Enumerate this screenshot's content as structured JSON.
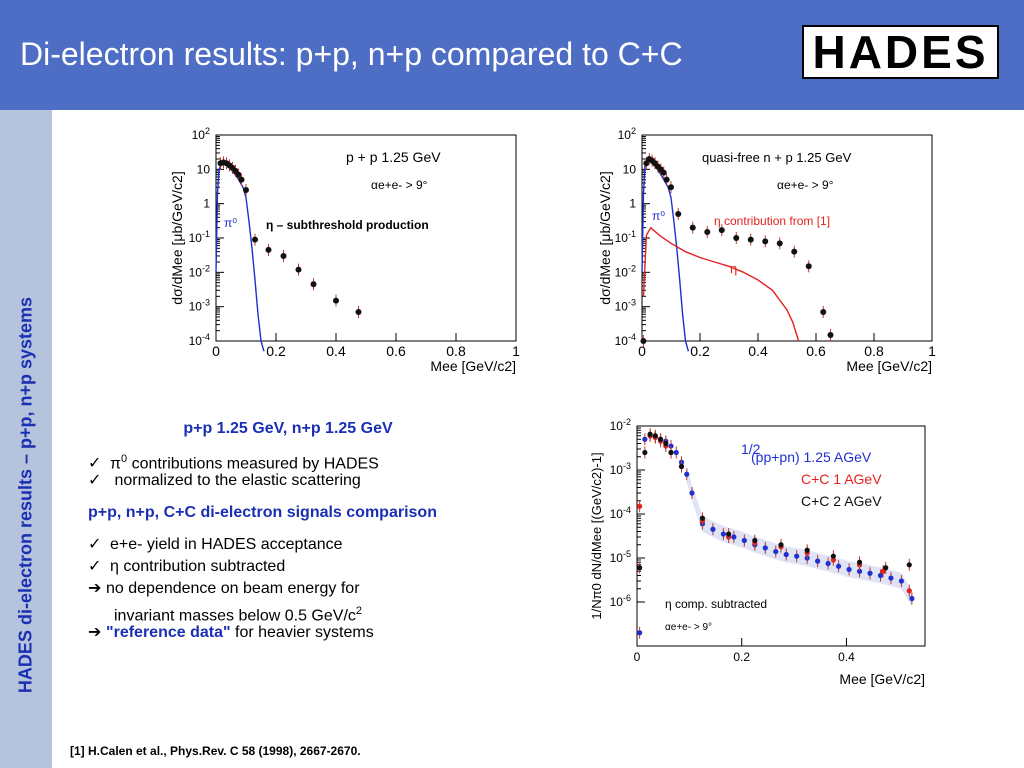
{
  "title": "Di-electron results: p+p, n+p compared to C+C",
  "logo_text": "HADES",
  "sidebar_text": "HADES di-electron results – p+p, n+p systems",
  "colors": {
    "header": "#4e6dc4",
    "sidebar": "#b6c3dc",
    "accent": "#1a2fb4",
    "pi0": "#1f2fd0",
    "eta": "#e3221f"
  },
  "text_block": {
    "heading1": "p+p 1.25 GeV, n+p 1.25 GeV",
    "check1_pre": "π",
    "check1_sup": "0",
    "check1_post": " contributions measured by HADES",
    "check2": " normalized to the elastic scattering",
    "heading2": "p+p, n+p, C+C di-electron signals comparison",
    "check3": "e+e- yield in HADES acceptance",
    "check4": "η contribution subtracted",
    "arrow1": "no dependence on beam energy for",
    "arrow1_cont_pre": "invariant masses below 0.5 GeV/c",
    "arrow1_cont_sup": "2",
    "arrow2_quote": "\"reference data\"",
    "arrow2_post": " for heavier systems"
  },
  "footnote": "[1] H.Calen et al., Phys.Rev. C 58 (1998), 2667-2670.",
  "chart_data": [
    {
      "type": "scatter",
      "xlim": [
        0,
        1
      ],
      "ylim_log10": [
        -4,
        2
      ],
      "xticks": [
        "0",
        "0.2",
        "0.4",
        "0.6",
        "0.8",
        "1"
      ],
      "yticks": [
        "10-4",
        "10-3",
        "10-2",
        "10-1",
        "1",
        "10",
        "102"
      ],
      "ylabel": "dσ/dMee [μb/GeV/c2]",
      "xlabel": "Mee [GeV/c2]",
      "legend_lines": [
        "p + p  1.25 GeV",
        "αe+e- > 9°"
      ],
      "annotation": "η – subthreshold production",
      "series": [
        {
          "name": "π⁰",
          "kind": "curve",
          "x": [
            0.0,
            0.005,
            0.01,
            0.02,
            0.03,
            0.05,
            0.07,
            0.09,
            0.1,
            0.11,
            0.12,
            0.13,
            0.14,
            0.15,
            0.16
          ],
          "y": [
            0.01,
            2,
            10,
            15,
            14,
            10,
            6,
            3,
            1.5,
            0.3,
            0.05,
            0.006,
            0.0006,
            0.0001,
            3e-05
          ]
        },
        {
          "kind": "points",
          "x": [
            0.015,
            0.025,
            0.035,
            0.045,
            0.055,
            0.065,
            0.075,
            0.085,
            0.1,
            0.13,
            0.175,
            0.225,
            0.275,
            0.325,
            0.4,
            0.475
          ],
          "y": [
            15,
            16,
            15,
            13,
            11,
            9,
            7,
            5,
            2.5,
            0.09,
            0.045,
            0.03,
            0.012,
            0.0045,
            0.0015,
            0.0007
          ]
        }
      ]
    },
    {
      "type": "scatter",
      "xlim": [
        0,
        1
      ],
      "ylim_log10": [
        -4,
        2
      ],
      "xticks": [
        "0",
        "0.2",
        "0.4",
        "0.6",
        "0.8",
        "1"
      ],
      "yticks": [
        "10-4",
        "10-3",
        "10-2",
        "10-1",
        "1",
        "10",
        "102"
      ],
      "ylabel": "dσ/dMee [μb/GeV/c2]",
      "xlabel": "Mee [GeV/c2]",
      "legend_lines": [
        "quasi-free n + p  1.25 GeV",
        "αe+e- > 9°"
      ],
      "annotation": "η contribution  from [1]",
      "series": [
        {
          "name": "π⁰",
          "kind": "curve",
          "x": [
            0.0,
            0.005,
            0.01,
            0.02,
            0.03,
            0.05,
            0.07,
            0.09,
            0.1,
            0.11,
            0.12,
            0.13,
            0.14,
            0.15,
            0.16
          ],
          "y": [
            0.01,
            2,
            12,
            18,
            16,
            11,
            6,
            3,
            1.5,
            0.3,
            0.05,
            0.006,
            0.0006,
            0.0001,
            3e-05
          ]
        },
        {
          "name": "η",
          "kind": "curve",
          "x": [
            0.005,
            0.015,
            0.03,
            0.06,
            0.1,
            0.15,
            0.2,
            0.25,
            0.3,
            0.35,
            0.4,
            0.45,
            0.5,
            0.52,
            0.54
          ],
          "y": [
            0.002,
            0.12,
            0.2,
            0.12,
            0.07,
            0.04,
            0.027,
            0.02,
            0.015,
            0.01,
            0.006,
            0.003,
            0.0008,
            0.00035,
            0.0001
          ]
        },
        {
          "kind": "points",
          "x": [
            0.005,
            0.015,
            0.025,
            0.035,
            0.045,
            0.055,
            0.065,
            0.075,
            0.085,
            0.1,
            0.125,
            0.175,
            0.225,
            0.275,
            0.325,
            0.375,
            0.425,
            0.475,
            0.525,
            0.575,
            0.625,
            0.65
          ],
          "y": [
            0.0001,
            15,
            20,
            18,
            15,
            12,
            10,
            8,
            5,
            3,
            0.5,
            0.2,
            0.15,
            0.17,
            0.1,
            0.09,
            0.08,
            0.07,
            0.04,
            0.015,
            0.0007,
            0.00015
          ]
        }
      ]
    },
    {
      "type": "scatter",
      "xlim": [
        0,
        0.55
      ],
      "ylim_log10": [
        -7,
        -2
      ],
      "xticks": [
        "0",
        "0.2",
        "0.4"
      ],
      "yticks": [
        "10-6",
        "10-5",
        "10-4",
        "10-3",
        "10-2"
      ],
      "ylabel": "1/Nπ0 dN/dMee [(GeV/c2)-1]",
      "xlabel": "Mee [GeV/c2]",
      "legend_fraction": "1/2",
      "annotation_lines": [
        "η comp. subtracted",
        "αe+e- > 9°"
      ],
      "series": [
        {
          "name": "(pp+pn) 1.25 AGeV",
          "color": "#1f2fd0",
          "x": [
            0.005,
            0.015,
            0.025,
            0.035,
            0.045,
            0.055,
            0.065,
            0.075,
            0.085,
            0.095,
            0.105,
            0.125,
            0.145,
            0.165,
            0.185,
            0.205,
            0.225,
            0.245,
            0.265,
            0.285,
            0.305,
            0.325,
            0.345,
            0.365,
            0.385,
            0.405,
            0.425,
            0.445,
            0.465,
            0.485,
            0.505,
            0.525
          ],
          "y": [
            2e-07,
            0.005,
            0.006,
            0.0055,
            0.005,
            0.0045,
            0.0035,
            0.0025,
            0.0015,
            0.0008,
            0.0003,
            6e-05,
            4.5e-05,
            3.5e-05,
            3e-05,
            2.5e-05,
            2e-05,
            1.7e-05,
            1.4e-05,
            1.2e-05,
            1.1e-05,
            1e-05,
            8.5e-06,
            7.5e-06,
            6.5e-06,
            5.5e-06,
            5e-06,
            4.5e-06,
            4e-06,
            3.5e-06,
            3e-06,
            1.2e-06
          ]
        },
        {
          "name": "C+C 1 AGeV",
          "color": "#e3221f",
          "x": [
            0.005,
            0.025,
            0.035,
            0.045,
            0.055,
            0.065,
            0.085,
            0.125,
            0.175,
            0.225,
            0.275,
            0.325,
            0.375,
            0.425,
            0.47,
            0.52
          ],
          "y": [
            0.00015,
            0.006,
            0.0055,
            0.0045,
            0.0035,
            0.0025,
            0.0012,
            7e-05,
            3e-05,
            2.2e-05,
            1.8e-05,
            1.3e-05,
            9e-06,
            7e-06,
            5e-06,
            1.8e-06
          ]
        },
        {
          "name": "C+C 2 AGeV",
          "color": "#111111",
          "x": [
            0.005,
            0.015,
            0.025,
            0.035,
            0.045,
            0.055,
            0.065,
            0.085,
            0.125,
            0.175,
            0.225,
            0.275,
            0.325,
            0.375,
            0.425,
            0.475,
            0.52
          ],
          "y": [
            6e-06,
            0.0025,
            0.0065,
            0.006,
            0.005,
            0.004,
            0.0025,
            0.0012,
            8e-05,
            3.5e-05,
            2.5e-05,
            2e-05,
            1.5e-05,
            1.1e-05,
            8e-06,
            6e-06,
            7e-06
          ]
        }
      ]
    }
  ]
}
